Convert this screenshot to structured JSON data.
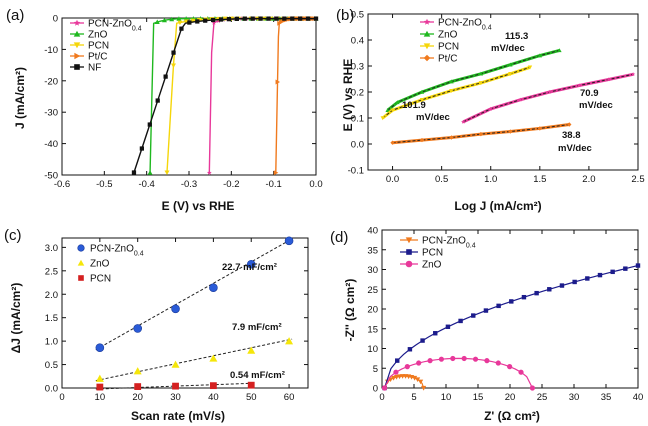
{
  "figure": {
    "colors": {
      "pcn_zno": "#e8389a",
      "zno": "#1fb81f",
      "pcn": "#f5d60a",
      "ptc": "#f07a1e",
      "nf": "#111111",
      "fit": "#222222"
    }
  },
  "chart_data": [
    {
      "panel": "(a)",
      "type": "line",
      "xlabel": "E (V) vs RHE",
      "ylabel": "J (mA/cm²)",
      "xlim": [
        -0.6,
        0.0
      ],
      "ylim": [
        -50,
        0
      ],
      "xticks": [
        "-0.6",
        "-0.5",
        "-0.4",
        "-0.3",
        "-0.2",
        "-0.1",
        "0.0"
      ],
      "yticks": [
        "0",
        "-10",
        "-20",
        "-30",
        "-40",
        "-50"
      ],
      "legend": [
        "PCN-ZnO0.4",
        "ZnO",
        "PCN",
        "Pt/C",
        "NF"
      ],
      "series": [
        {
          "name": "PCN-ZnO0.4",
          "color": "#e8389a",
          "marker": "star",
          "onset": -0.245,
          "start": -0.252,
          "j0": 0.3,
          "scale": 0.022
        },
        {
          "name": "ZnO",
          "color": "#1fb81f",
          "marker": "triangle",
          "onset": -0.385,
          "start": -0.392,
          "j0": 0.3,
          "scale": 0.03
        },
        {
          "name": "PCN",
          "color": "#f5d60a",
          "marker": "triangle-down",
          "onset": -0.33,
          "start": -0.352,
          "j0": 0.2,
          "scale": 0.055
        },
        {
          "name": "Pt/C",
          "color": "#f07a1e",
          "marker": "triangle-right",
          "onset": -0.088,
          "start": -0.095,
          "j0": 0.3,
          "scale": 0.015
        },
        {
          "name": "NF",
          "color": "#111111",
          "marker": "square",
          "onset": -0.31,
          "start": -0.43,
          "j0": 0.2,
          "scale": 0.068
        }
      ]
    },
    {
      "panel": "(b)",
      "type": "line",
      "xlabel": "Log J (mA/cm²)",
      "ylabel": "E (V) vs RHE",
      "xlim": [
        -0.25,
        2.5
      ],
      "ylim": [
        -0.1,
        0.5
      ],
      "xticks": [
        "0.0",
        "0.5",
        "1.0",
        "1.5",
        "2.0",
        "2.5"
      ],
      "yticks": [
        "-0.1",
        "0.0",
        "0.1",
        "0.2",
        "0.3",
        "0.4",
        "0.5"
      ],
      "legend": [
        "PCN-ZnO0.4",
        "ZnO",
        "PCN",
        "Pt/C"
      ],
      "series": [
        {
          "name": "PCN-ZnO0.4",
          "color": "#e8389a",
          "marker": "star",
          "x": [
            0.72,
            1.0,
            1.3,
            1.6,
            1.9,
            2.2,
            2.45
          ],
          "y": [
            0.085,
            0.135,
            0.17,
            0.2,
            0.225,
            0.248,
            0.268
          ]
        },
        {
          "name": "ZnO",
          "color": "#1fb81f",
          "marker": "triangle",
          "x": [
            -0.05,
            0.05,
            0.3,
            0.6,
            0.9,
            1.2,
            1.5,
            1.7
          ],
          "y": [
            0.13,
            0.16,
            0.2,
            0.24,
            0.27,
            0.305,
            0.34,
            0.36
          ]
        },
        {
          "name": "PCN",
          "color": "#f5d60a",
          "marker": "triangle-down",
          "x": [
            -0.1,
            0.0,
            0.3,
            0.6,
            0.9,
            1.2,
            1.4
          ],
          "y": [
            0.1,
            0.13,
            0.17,
            0.205,
            0.235,
            0.27,
            0.295
          ]
        },
        {
          "name": "Pt/C",
          "color": "#f07a1e",
          "marker": "diamond",
          "x": [
            0.0,
            0.3,
            0.6,
            0.9,
            1.2,
            1.5,
            1.8
          ],
          "y": [
            0.005,
            0.015,
            0.025,
            0.038,
            0.048,
            0.06,
            0.075
          ]
        }
      ],
      "annotations": [
        "115.3",
        "mV/dec",
        "101.9",
        "mV/dec",
        "70.9",
        "mV/dec",
        "38.8",
        "mV/dec"
      ]
    },
    {
      "panel": "(c)",
      "type": "scatter",
      "xlabel": "Scan rate (mV/s)",
      "ylabel": "ΔJ (mA/cm²)",
      "xlim": [
        0,
        65
      ],
      "ylim": [
        0,
        3.2
      ],
      "xticks": [
        "0",
        "10",
        "20",
        "30",
        "40",
        "50",
        "60"
      ],
      "yticks": [
        "0.0",
        "0.5",
        "1.0",
        "1.5",
        "2.0",
        "2.5",
        "3.0"
      ],
      "legend": [
        "PCN-ZnO0.4",
        "ZnO",
        "PCN"
      ],
      "series": [
        {
          "name": "PCN-ZnO0.4",
          "color": "#2a5bd7",
          "marker": "sphere",
          "x": [
            10,
            20,
            30,
            40,
            50,
            60
          ],
          "y": [
            0.86,
            1.27,
            1.69,
            2.14,
            2.64,
            3.14
          ]
        },
        {
          "name": "ZnO",
          "color": "#f5e60a",
          "marker": "triangle",
          "x": [
            10,
            20,
            30,
            40,
            50,
            60
          ],
          "y": [
            0.2,
            0.36,
            0.5,
            0.63,
            0.8,
            1.0
          ]
        },
        {
          "name": "PCN",
          "color": "#d42020",
          "marker": "square",
          "x": [
            10,
            20,
            30,
            40,
            50
          ],
          "y": [
            0.02,
            0.03,
            0.04,
            0.05,
            0.06
          ]
        }
      ],
      "annotations": [
        "22.7 mF/cm²",
        "7.9 mF/cm²",
        "0.54 mF/cm²"
      ]
    },
    {
      "panel": "(d)",
      "type": "line",
      "xlabel": "Z' (Ω cm²)",
      "ylabel": "-Z'' (Ω cm²)",
      "xlim": [
        0,
        40
      ],
      "ylim": [
        0,
        40
      ],
      "xticks": [
        "0",
        "5",
        "10",
        "15",
        "20",
        "25",
        "30",
        "35",
        "40"
      ],
      "yticks": [
        "0",
        "5",
        "10",
        "15",
        "20",
        "25",
        "30",
        "35",
        "40"
      ],
      "legend": [
        "PCN-ZnO0.4",
        "PCN",
        "ZnO"
      ],
      "series": [
        {
          "name": "PCN-ZnO0.4",
          "color": "#f07a1e",
          "marker": "triangle-down",
          "kind": "semicircle",
          "x0": 0.4,
          "x1": 6.5,
          "height": 3.0
        },
        {
          "name": "PCN",
          "color": "#1c1c8c",
          "marker": "square",
          "kind": "arc",
          "x0": 0.4,
          "x1": 40,
          "height": 31
        },
        {
          "name": "ZnO",
          "color": "#e8389a",
          "marker": "circle",
          "kind": "semicircle",
          "x0": 0.4,
          "x1": 23.5,
          "height": 7.5
        }
      ]
    }
  ]
}
